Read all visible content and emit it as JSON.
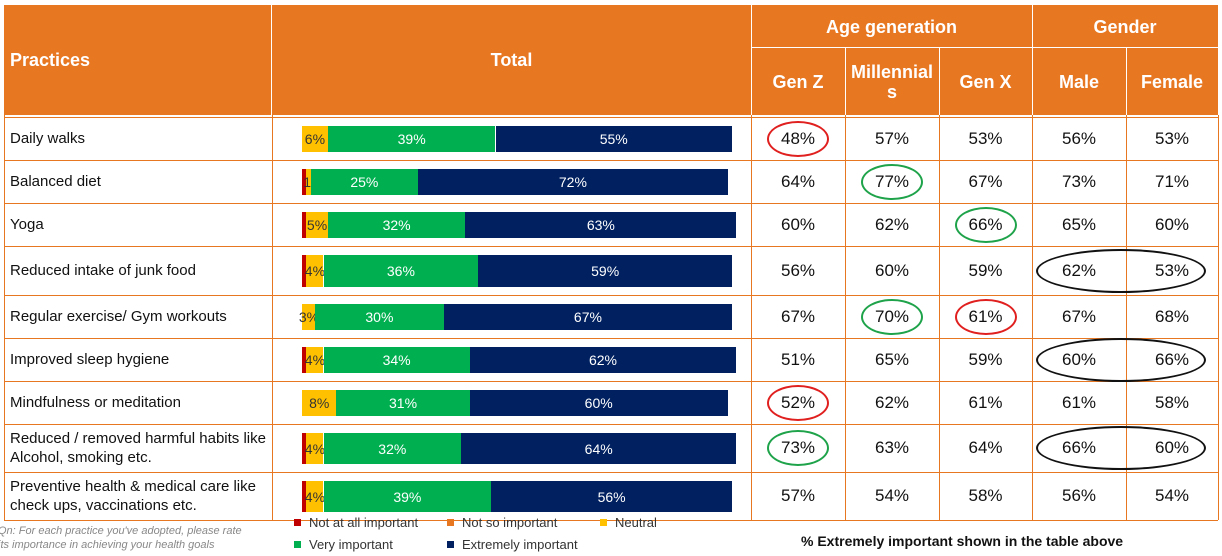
{
  "colors": {
    "header_bg": "#E87722",
    "not_at_all": "#C00000",
    "not_so": "#E87722",
    "neutral": "#FFC000",
    "very": "#00B050",
    "extremely": "#002060",
    "ring_red": "#E0201F",
    "ring_green": "#1FA34A",
    "ring_black": "#111111"
  },
  "table": {
    "practices_header": "Practices",
    "total_header": "Total",
    "age_header": "Age generation",
    "gender_header": "Gender",
    "subheaders": {
      "genz": "Gen Z",
      "millennials": "Millennial s",
      "genx": "Gen X",
      "male": "Male",
      "female": "Female"
    }
  },
  "rows": [
    {
      "practice": "Daily walks",
      "genz": "48%",
      "millennials": "57%",
      "genx": "53%",
      "male": "56%",
      "female": "53%",
      "highlight": {
        "genz": "red"
      }
    },
    {
      "practice": "Balanced diet",
      "genz": "64%",
      "millennials": "77%",
      "genx": "67%",
      "male": "73%",
      "female": "71%",
      "highlight": {
        "millennials": "green"
      }
    },
    {
      "practice": "Yoga",
      "genz": "60%",
      "millennials": "62%",
      "genx": "66%",
      "male": "65%",
      "female": "60%",
      "highlight": {
        "genx": "green"
      }
    },
    {
      "practice": "Reduced intake of junk food",
      "genz": "56%",
      "millennials": "60%",
      "genx": "59%",
      "male": "62%",
      "female": "53%",
      "highlight": {
        "gender": "black"
      }
    },
    {
      "practice": "Regular exercise/ Gym workouts",
      "genz": "67%",
      "millennials": "70%",
      "genx": "61%",
      "male": "67%",
      "female": "68%",
      "highlight": {
        "millennials": "green",
        "genx": "red"
      }
    },
    {
      "practice": "Improved sleep hygiene",
      "genz": "51%",
      "millennials": "65%",
      "genx": "59%",
      "male": "60%",
      "female": "66%",
      "highlight": {
        "gender": "black"
      }
    },
    {
      "practice": "Mindfulness or meditation",
      "genz": "52%",
      "millennials": "62%",
      "genx": "61%",
      "male": "61%",
      "female": "58%",
      "highlight": {
        "genz": "red"
      }
    },
    {
      "practice": "Reduced / removed harmful habits like Alcohol, smoking etc.",
      "genz": "73%",
      "millennials": "63%",
      "genx": "64%",
      "male": "66%",
      "female": "60%",
      "highlight": {
        "genz": "green",
        "gender": "black"
      }
    },
    {
      "practice": "Preventive health & medical care like check ups, vaccinations etc.",
      "genz": "57%",
      "millennials": "54%",
      "genx": "58%",
      "male": "56%",
      "female": "54%",
      "highlight": {}
    }
  ],
  "chart_data": {
    "type": "bar",
    "orientation": "horizontal",
    "stacked": true,
    "normalized": true,
    "categories": [
      "Daily walks",
      "Balanced diet",
      "Yoga",
      "Reduced intake of junk food",
      "Regular exercise/ Gym workouts",
      "Improved sleep hygiene",
      "Mindfulness or meditation",
      "Reduced / removed harmful habits like Alcohol, smoking etc.",
      "Preventive health & medical care like check ups, vaccinations etc."
    ],
    "series": [
      {
        "name": "Not at all important",
        "color": "#C00000",
        "values": [
          0,
          1,
          1,
          1,
          0,
          1,
          0,
          1,
          1
        ],
        "labels": [
          "",
          "",
          "",
          "",
          "",
          "",
          "",
          "",
          ""
        ]
      },
      {
        "name": "Not so important",
        "color": "#E87722",
        "values": [
          0,
          0,
          0,
          0,
          0,
          0,
          0,
          0,
          0
        ],
        "labels": [
          "",
          "",
          "",
          "",
          "",
          "",
          "",
          "",
          ""
        ]
      },
      {
        "name": "Neutral",
        "color": "#FFC000",
        "values": [
          6,
          1,
          5,
          4,
          3,
          4,
          8,
          4,
          4
        ],
        "labels": [
          "6%",
          "1%",
          "5%",
          "4%",
          "3%",
          "4%",
          "8%",
          "4%",
          "4%"
        ]
      },
      {
        "name": "Very important",
        "color": "#00B050",
        "values": [
          39,
          25,
          32,
          36,
          30,
          34,
          31,
          32,
          39
        ],
        "labels": [
          "39%",
          "25%",
          "32%",
          "36%",
          "30%",
          "34%",
          "31%",
          "32%",
          "39%"
        ]
      },
      {
        "name": "Extremely important",
        "color": "#002060",
        "values": [
          55,
          72,
          63,
          59,
          67,
          62,
          60,
          64,
          56
        ],
        "labels": [
          "55%",
          "72%",
          "63%",
          "59%",
          "67%",
          "62%",
          "60%",
          "64%",
          "56%"
        ]
      }
    ],
    "xlim": [
      0,
      100
    ],
    "legend_position": "bottom"
  },
  "footnote": {
    "line1": "Qn: For each practice you've adopted, please rate",
    "line2": "its importance in achieving your health goals"
  },
  "footer_text": "% Extremely important shown in the table above"
}
